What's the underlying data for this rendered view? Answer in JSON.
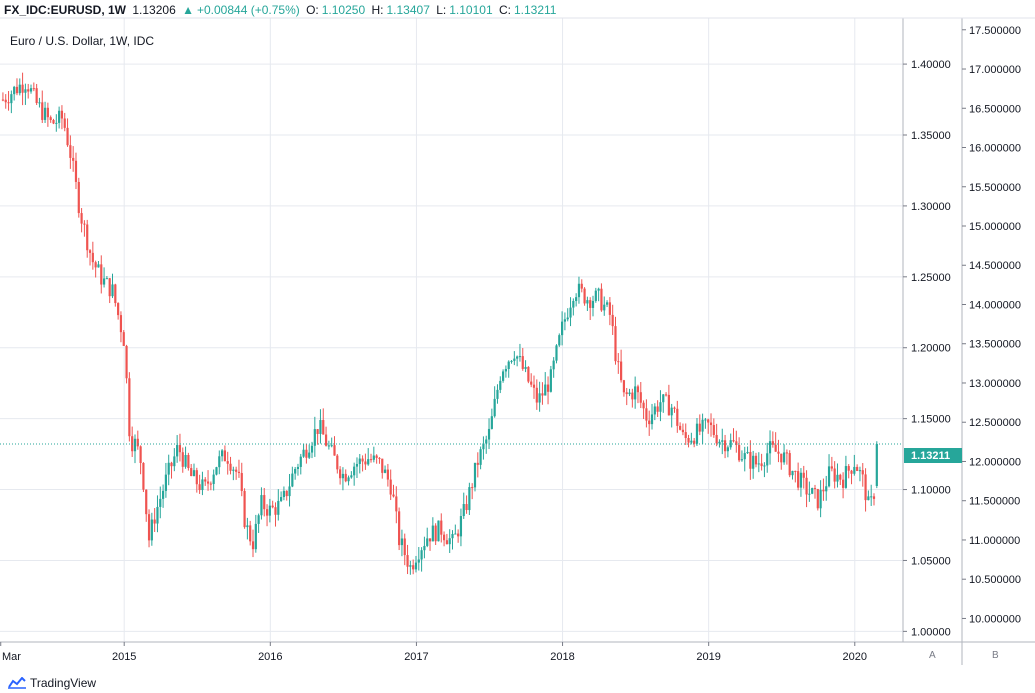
{
  "header": {
    "symbol": "FX_IDC:EURUSD, 1W",
    "last": "1.13206",
    "change_arrow": "▲",
    "change": "+0.00844 (+0.75%)",
    "o_label": "O:",
    "o_value": "1.10250",
    "h_label": "H:",
    "h_value": "1.13407",
    "l_label": "L:",
    "l_value": "1.10101",
    "c_label": "C:",
    "c_value": "1.13211"
  },
  "subtitle": "Euro / U.S. Dollar, 1W, IDC",
  "footer": {
    "brand": "TradingView",
    "logo_icon": "tradingview-logo-icon"
  },
  "buttons": {
    "a": "A",
    "b": "B"
  },
  "last_price_label": "1.13211",
  "colors": {
    "up": "#26a69a",
    "down": "#ef5350",
    "grid": "#e6e9ef",
    "price_line": "#26a69a"
  },
  "chart_data": {
    "type": "candlestick",
    "title": "Euro / U.S. Dollar, 1W, IDC",
    "x_ticks": [
      "Mar",
      "2015",
      "2016",
      "2017",
      "2018",
      "2019",
      "2020"
    ],
    "left_axis": {
      "ticks": [
        "1.00000",
        "1.05000",
        "1.10000",
        "1.15000",
        "1.20000",
        "1.25000",
        "1.30000",
        "1.35000",
        "1.40000"
      ],
      "range": [
        0.9925,
        1.4325
      ]
    },
    "right_axis": {
      "ticks": [
        "10.000000",
        "10.500000",
        "11.000000",
        "11.500000",
        "12.000000",
        "12.500000",
        "13.000000",
        "13.500000",
        "14.000000",
        "14.500000",
        "15.000000",
        "15.500000",
        "16.000000",
        "16.500000",
        "17.000000",
        "17.500000"
      ],
      "range": [
        9.7,
        17.65
      ]
    },
    "last_value": 1.13211,
    "close_path": [
      [
        2014.17,
        1.375
      ],
      [
        2014.25,
        1.382
      ],
      [
        2014.33,
        1.388
      ],
      [
        2014.4,
        1.372
      ],
      [
        2014.5,
        1.358
      ],
      [
        2014.58,
        1.362
      ],
      [
        2014.63,
        1.338
      ],
      [
        2014.7,
        1.295
      ],
      [
        2014.78,
        1.262
      ],
      [
        2014.85,
        1.248
      ],
      [
        2014.92,
        1.24
      ],
      [
        2015.0,
        1.205
      ],
      [
        2015.04,
        1.135
      ],
      [
        2015.08,
        1.132
      ],
      [
        2015.12,
        1.118
      ],
      [
        2015.17,
        1.065
      ],
      [
        2015.21,
        1.082
      ],
      [
        2015.29,
        1.108
      ],
      [
        2015.37,
        1.13
      ],
      [
        2015.45,
        1.11
      ],
      [
        2015.55,
        1.1
      ],
      [
        2015.63,
        1.118
      ],
      [
        2015.7,
        1.125
      ],
      [
        2015.78,
        1.11
      ],
      [
        2015.83,
        1.075
      ],
      [
        2015.88,
        1.062
      ],
      [
        2015.94,
        1.09
      ],
      [
        2016.0,
        1.085
      ],
      [
        2016.08,
        1.09
      ],
      [
        2016.17,
        1.115
      ],
      [
        2016.25,
        1.13
      ],
      [
        2016.33,
        1.145
      ],
      [
        2016.42,
        1.125
      ],
      [
        2016.5,
        1.11
      ],
      [
        2016.58,
        1.118
      ],
      [
        2016.67,
        1.122
      ],
      [
        2016.75,
        1.118
      ],
      [
        2016.83,
        1.102
      ],
      [
        2016.88,
        1.065
      ],
      [
        2016.96,
        1.045
      ],
      [
        2017.0,
        1.055
      ],
      [
        2017.08,
        1.068
      ],
      [
        2017.17,
        1.072
      ],
      [
        2017.25,
        1.062
      ],
      [
        2017.33,
        1.085
      ],
      [
        2017.42,
        1.12
      ],
      [
        2017.5,
        1.14
      ],
      [
        2017.58,
        1.185
      ],
      [
        2017.67,
        1.198
      ],
      [
        2017.75,
        1.18
      ],
      [
        2017.83,
        1.162
      ],
      [
        2017.92,
        1.178
      ],
      [
        2018.0,
        1.215
      ],
      [
        2018.08,
        1.242
      ],
      [
        2018.17,
        1.235
      ],
      [
        2018.25,
        1.235
      ],
      [
        2018.33,
        1.222
      ],
      [
        2018.37,
        1.19
      ],
      [
        2018.42,
        1.165
      ],
      [
        2018.5,
        1.17
      ],
      [
        2018.58,
        1.15
      ],
      [
        2018.67,
        1.162
      ],
      [
        2018.75,
        1.158
      ],
      [
        2018.83,
        1.135
      ],
      [
        2018.92,
        1.14
      ],
      [
        2019.0,
        1.145
      ],
      [
        2019.08,
        1.135
      ],
      [
        2019.17,
        1.132
      ],
      [
        2019.25,
        1.122
      ],
      [
        2019.33,
        1.118
      ],
      [
        2019.42,
        1.128
      ],
      [
        2019.5,
        1.125
      ],
      [
        2019.58,
        1.112
      ],
      [
        2019.67,
        1.1
      ],
      [
        2019.75,
        1.092
      ],
      [
        2019.83,
        1.112
      ],
      [
        2019.92,
        1.108
      ],
      [
        2020.0,
        1.12
      ],
      [
        2020.06,
        1.105
      ],
      [
        2020.1,
        1.085
      ],
      [
        2020.14,
        1.102
      ],
      [
        2020.16,
        1.132
      ]
    ]
  }
}
